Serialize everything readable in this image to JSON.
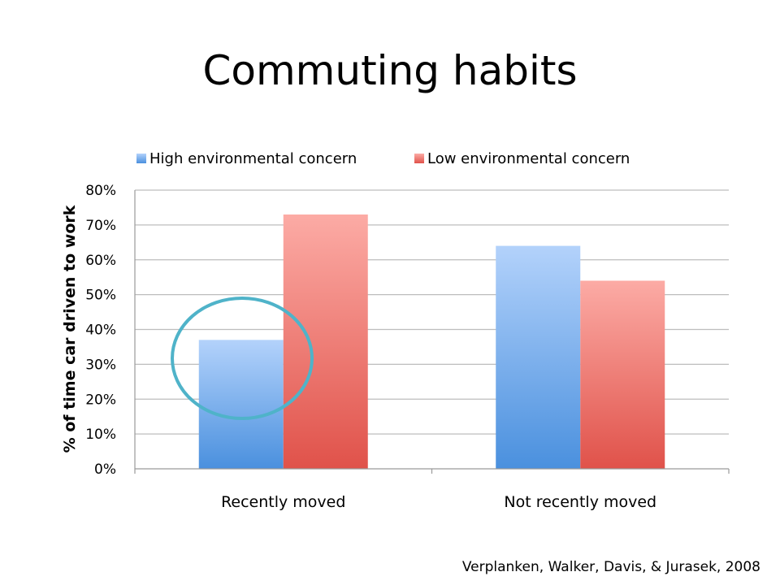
{
  "slide": {
    "title": "Commuting habits",
    "citation": "Verplanken, Walker, Davis, & Jurasek, 2008"
  },
  "chart_data": {
    "type": "bar",
    "categories": [
      "Recently moved",
      "Not recently moved"
    ],
    "series": [
      {
        "name": "High environmental concern",
        "values": [
          37,
          64
        ],
        "color": "#5b9be0"
      },
      {
        "name": "Low environmental concern",
        "values": [
          73,
          54
        ],
        "color": "#e4645a"
      }
    ],
    "ylabel": "% of time car driven to work",
    "xlabel": "",
    "ylim": [
      0,
      80
    ],
    "yticks": [
      "0%",
      "10%",
      "20%",
      "30%",
      "40%",
      "50%",
      "60%",
      "70%",
      "80%"
    ],
    "grid": true,
    "legend_position": "top",
    "annotation": {
      "type": "circle",
      "target": "Recently moved / High environmental concern",
      "color": "#4fb3c9"
    }
  }
}
